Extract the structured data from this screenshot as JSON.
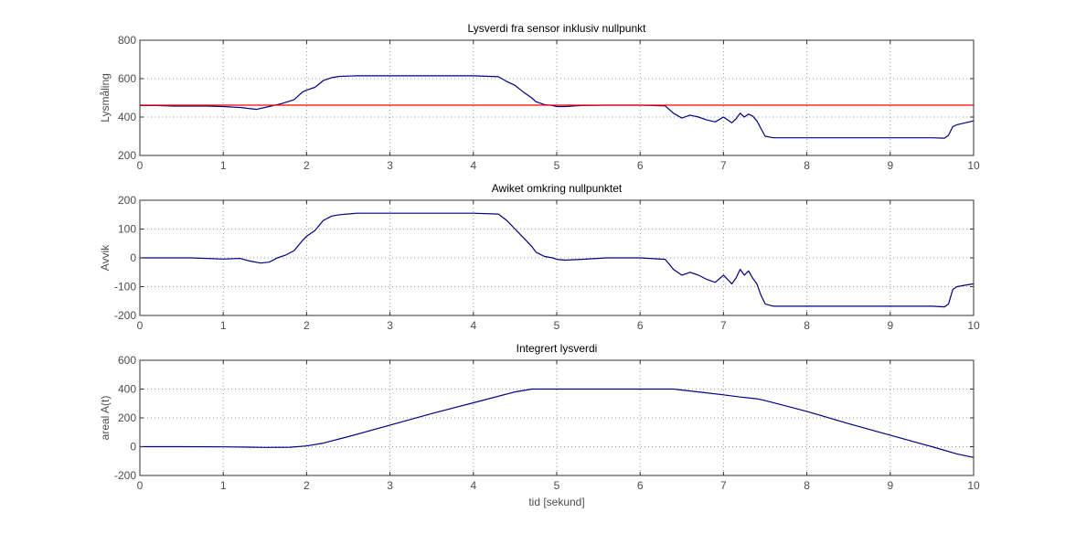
{
  "figure": {
    "background": "#ffffff",
    "series_color": "#000080",
    "reference_color": "#ff0000"
  },
  "chart_data": [
    {
      "type": "line",
      "title": "Lysverdi fra sensor inklusiv nullpunkt",
      "xlabel": "",
      "ylabel": "Lysmåling",
      "xlim": [
        0,
        10
      ],
      "ylim": [
        200,
        800
      ],
      "xticks": [
        "0",
        "1",
        "2",
        "3",
        "4",
        "5",
        "6",
        "7",
        "8",
        "9",
        "10"
      ],
      "yticks": [
        "200",
        "400",
        "600",
        "800"
      ],
      "grid": true,
      "series": [
        {
          "color": "#000080",
          "x": [
            0,
            0.2,
            0.4,
            0.6,
            0.8,
            1.0,
            1.2,
            1.4,
            1.55,
            1.7,
            1.85,
            1.95,
            2.0,
            2.1,
            2.2,
            2.3,
            2.4,
            2.6,
            3.0,
            3.5,
            4.0,
            4.3,
            4.4,
            4.5,
            4.6,
            4.7,
            4.75,
            4.85,
            4.95,
            5.0,
            5.1,
            5.3,
            5.6,
            6.0,
            6.3,
            6.4,
            6.5,
            6.6,
            6.7,
            6.8,
            6.9,
            7.0,
            7.1,
            7.15,
            7.2,
            7.25,
            7.3,
            7.35,
            7.4,
            7.45,
            7.5,
            7.6,
            8.0,
            8.5,
            9.0,
            9.5,
            9.65,
            9.7,
            9.75,
            9.8,
            9.9,
            10.0
          ],
          "y": [
            460,
            460,
            457,
            457,
            457,
            455,
            450,
            440,
            455,
            470,
            490,
            530,
            540,
            555,
            590,
            605,
            612,
            615,
            615,
            615,
            615,
            610,
            585,
            565,
            530,
            500,
            480,
            465,
            460,
            455,
            455,
            460,
            462,
            462,
            458,
            420,
            395,
            410,
            400,
            385,
            375,
            400,
            370,
            390,
            420,
            400,
            415,
            405,
            380,
            340,
            300,
            292,
            292,
            292,
            292,
            292,
            290,
            305,
            350,
            360,
            370,
            380
          ]
        },
        {
          "color": "#ff0000",
          "x": [
            0,
            10
          ],
          "y": [
            462,
            462
          ]
        }
      ]
    },
    {
      "type": "line",
      "title": "Awiket omkring nullpunktet",
      "xlabel": "",
      "ylabel": "Avvik",
      "xlim": [
        0,
        10
      ],
      "ylim": [
        -200,
        200
      ],
      "xticks": [
        "0",
        "1",
        "2",
        "3",
        "4",
        "5",
        "6",
        "7",
        "8",
        "9",
        "10"
      ],
      "yticks": [
        "-200",
        "-100",
        "0",
        "100",
        "200"
      ],
      "grid": true,
      "series": [
        {
          "color": "#000080",
          "x": [
            0,
            0.2,
            0.4,
            0.6,
            0.8,
            1.0,
            1.2,
            1.3,
            1.45,
            1.55,
            1.65,
            1.75,
            1.85,
            1.95,
            2.0,
            2.1,
            2.2,
            2.3,
            2.4,
            2.6,
            3.0,
            3.5,
            4.0,
            4.3,
            4.4,
            4.5,
            4.6,
            4.7,
            4.75,
            4.85,
            4.95,
            5.0,
            5.1,
            5.3,
            5.6,
            6.0,
            6.3,
            6.4,
            6.5,
            6.6,
            6.7,
            6.8,
            6.9,
            7.0,
            7.1,
            7.15,
            7.2,
            7.25,
            7.3,
            7.35,
            7.4,
            7.45,
            7.5,
            7.6,
            8.0,
            8.5,
            9.0,
            9.5,
            9.65,
            9.7,
            9.75,
            9.8,
            9.9,
            10.0
          ],
          "y": [
            0,
            0,
            0,
            0,
            -2,
            -4,
            -2,
            -10,
            -18,
            -15,
            0,
            10,
            25,
            60,
            75,
            95,
            130,
            145,
            150,
            155,
            155,
            155,
            155,
            152,
            130,
            100,
            70,
            40,
            20,
            5,
            0,
            -5,
            -8,
            -5,
            0,
            0,
            -5,
            -40,
            -60,
            -50,
            -60,
            -75,
            -85,
            -60,
            -90,
            -70,
            -40,
            -60,
            -45,
            -70,
            -90,
            -130,
            -160,
            -168,
            -168,
            -168,
            -168,
            -168,
            -170,
            -160,
            -110,
            -100,
            -95,
            -90
          ]
        }
      ]
    },
    {
      "type": "line",
      "title": "Integrert lysverdi",
      "xlabel": "tid [sekund]",
      "ylabel": "areal A(t)",
      "xlim": [
        0,
        10
      ],
      "ylim": [
        -200,
        600
      ],
      "xticks": [
        "0",
        "1",
        "2",
        "3",
        "4",
        "5",
        "6",
        "7",
        "8",
        "9",
        "10"
      ],
      "yticks": [
        "-200",
        "0",
        "200",
        "400",
        "600"
      ],
      "grid": true,
      "series": [
        {
          "color": "#000080",
          "x": [
            0,
            0.5,
            1.0,
            1.3,
            1.5,
            1.8,
            2.0,
            2.2,
            2.5,
            3.0,
            3.5,
            4.0,
            4.5,
            4.7,
            5.0,
            5.5,
            6.0,
            6.4,
            6.7,
            7.0,
            7.2,
            7.4,
            7.5,
            8.0,
            8.5,
            9.0,
            9.5,
            9.8,
            10.0
          ],
          "y": [
            0,
            0,
            -1,
            -3,
            -5,
            -4,
            5,
            25,
            70,
            150,
            230,
            305,
            380,
            400,
            400,
            400,
            400,
            400,
            380,
            360,
            345,
            333,
            320,
            245,
            160,
            80,
            0,
            -50,
            -75
          ]
        }
      ]
    }
  ]
}
